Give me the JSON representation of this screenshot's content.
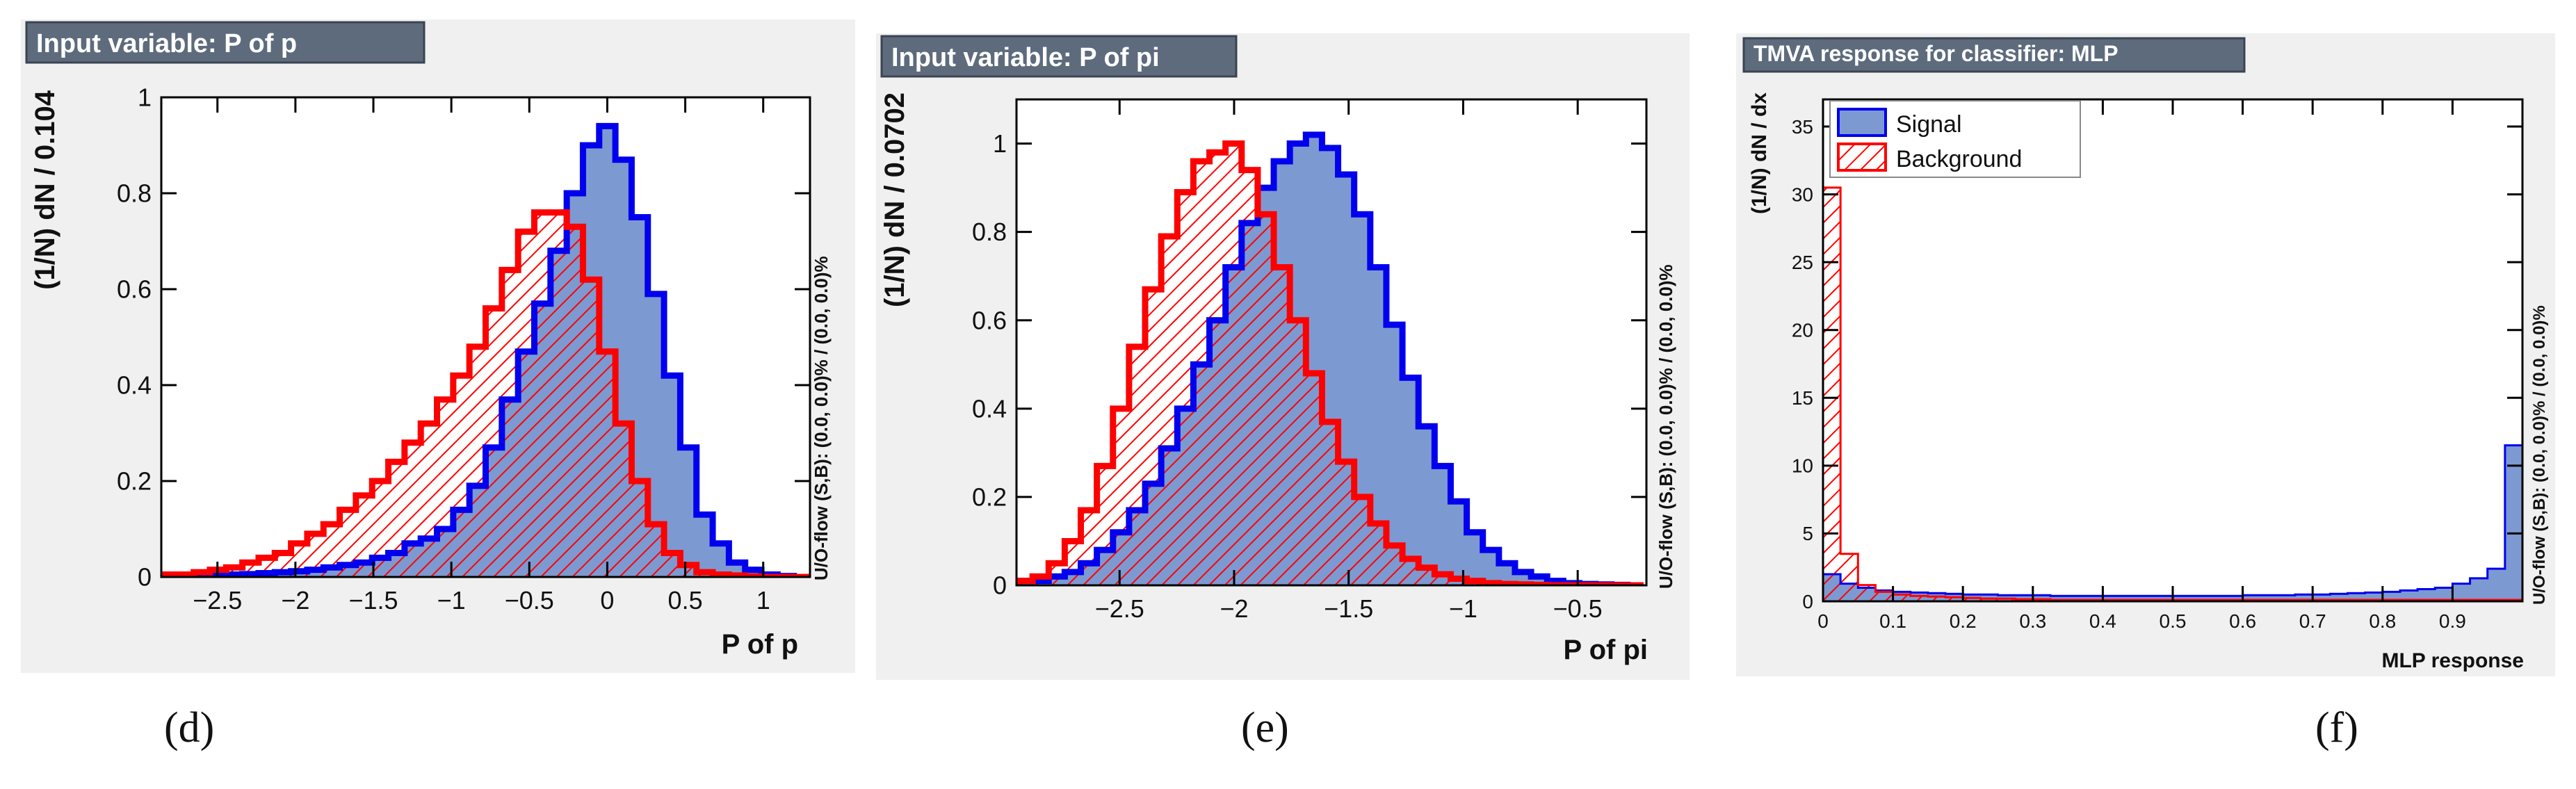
{
  "chart_data": [
    {
      "id": "d",
      "type": "histogram",
      "title": "Input variable: P of p",
      "xlabel": "P of p",
      "ylabel": "(1/N) dN / 0.104",
      "side_label": "U/O-flow (S,B): (0.0, 0.0)% / (0.0, 0.0)%",
      "xlim": [
        -2.86,
        1.3
      ],
      "ylim": [
        0,
        1.0
      ],
      "xticks": [
        {
          "v": -2.5,
          "label": "−2.5"
        },
        {
          "v": -2,
          "label": "−2"
        },
        {
          "v": -1.5,
          "label": "−1.5"
        },
        {
          "v": -1,
          "label": "−1"
        },
        {
          "v": -0.5,
          "label": "−0.5"
        },
        {
          "v": 0,
          "label": "0"
        },
        {
          "v": 0.5,
          "label": "0.5"
        },
        {
          "v": 1,
          "label": "1"
        }
      ],
      "yticks": [
        {
          "v": 0,
          "label": "0"
        },
        {
          "v": 0.2,
          "label": "0.2"
        },
        {
          "v": 0.4,
          "label": "0.4"
        },
        {
          "v": 0.6,
          "label": "0.6"
        },
        {
          "v": 0.8,
          "label": "0.8"
        },
        {
          "v": 1,
          "label": "1"
        }
      ],
      "bins": {
        "start": -2.86,
        "width": 0.104
      },
      "series": [
        {
          "name": "Signal",
          "values": [
            0.005,
            0.005,
            0.005,
            0.005,
            0.005,
            0.006,
            0.008,
            0.01,
            0.012,
            0.015,
            0.02,
            0.025,
            0.03,
            0.04,
            0.05,
            0.07,
            0.08,
            0.1,
            0.14,
            0.19,
            0.27,
            0.37,
            0.47,
            0.57,
            0.68,
            0.8,
            0.9,
            0.94,
            0.87,
            0.75,
            0.59,
            0.42,
            0.27,
            0.13,
            0.07,
            0.03,
            0.015,
            0.005,
            0.002,
            0.0
          ]
        },
        {
          "name": "Background",
          "values": [
            0.005,
            0.005,
            0.01,
            0.015,
            0.02,
            0.03,
            0.04,
            0.05,
            0.07,
            0.09,
            0.11,
            0.14,
            0.17,
            0.2,
            0.24,
            0.28,
            0.32,
            0.37,
            0.42,
            0.48,
            0.56,
            0.64,
            0.72,
            0.76,
            0.76,
            0.73,
            0.62,
            0.47,
            0.32,
            0.2,
            0.11,
            0.05,
            0.025,
            0.01,
            0.005,
            0.003,
            0.001,
            0.0,
            0.0,
            0.0
          ]
        }
      ]
    },
    {
      "id": "e",
      "type": "histogram",
      "title": "Input variable: P of pi",
      "xlabel": "P of pi",
      "ylabel": "(1/N) dN / 0.0702",
      "side_label": "U/O-flow (S,B): (0.0, 0.0)% / (0.0, 0.0)%",
      "xlim": [
        -2.95,
        -0.2
      ],
      "ylim": [
        0,
        1.1
      ],
      "xticks": [
        {
          "v": -2.5,
          "label": "−2.5"
        },
        {
          "v": -2,
          "label": "−2"
        },
        {
          "v": -1.5,
          "label": "−1.5"
        },
        {
          "v": -1,
          "label": "−1"
        },
        {
          "v": -0.5,
          "label": "−0.5"
        }
      ],
      "yticks": [
        {
          "v": 0,
          "label": "0"
        },
        {
          "v": 0.2,
          "label": "0.2"
        },
        {
          "v": 0.4,
          "label": "0.4"
        },
        {
          "v": 0.6,
          "label": "0.6"
        },
        {
          "v": 0.8,
          "label": "0.8"
        },
        {
          "v": 1,
          "label": "1"
        }
      ],
      "bins": {
        "start": -2.95,
        "width": 0.0702
      },
      "series": [
        {
          "name": "Signal",
          "values": [
            0.01,
            0.01,
            0.02,
            0.03,
            0.05,
            0.08,
            0.12,
            0.17,
            0.23,
            0.31,
            0.4,
            0.5,
            0.6,
            0.72,
            0.82,
            0.9,
            0.96,
            1.0,
            1.02,
            0.99,
            0.93,
            0.84,
            0.72,
            0.59,
            0.47,
            0.36,
            0.27,
            0.19,
            0.12,
            0.08,
            0.05,
            0.03,
            0.02,
            0.01,
            0.005,
            0.003,
            0.002,
            0.001,
            0.0
          ]
        },
        {
          "name": "Background",
          "values": [
            0.01,
            0.02,
            0.05,
            0.1,
            0.17,
            0.27,
            0.4,
            0.54,
            0.67,
            0.79,
            0.89,
            0.96,
            0.98,
            1.0,
            0.94,
            0.84,
            0.72,
            0.6,
            0.48,
            0.37,
            0.28,
            0.2,
            0.14,
            0.09,
            0.06,
            0.04,
            0.025,
            0.015,
            0.01,
            0.005,
            0.003,
            0.002,
            0.001,
            0.0,
            0.0,
            0.0,
            0.0,
            0.0,
            0.0
          ]
        }
      ]
    },
    {
      "id": "f",
      "type": "histogram",
      "title": "TMVA response for classifier: MLP",
      "xlabel": "MLP response",
      "ylabel": "(1/N) dN / dx",
      "side_label": "U/O-flow (S,B): (0.0, 0.0)% / (0.0, 0.0)%",
      "xlim": [
        0,
        1.0
      ],
      "ylim": [
        0,
        37
      ],
      "xticks": [
        {
          "v": 0,
          "label": "0"
        },
        {
          "v": 0.1,
          "label": "0.1"
        },
        {
          "v": 0.2,
          "label": "0.2"
        },
        {
          "v": 0.3,
          "label": "0.3"
        },
        {
          "v": 0.4,
          "label": "0.4"
        },
        {
          "v": 0.5,
          "label": "0.5"
        },
        {
          "v": 0.6,
          "label": "0.6"
        },
        {
          "v": 0.7,
          "label": "0.7"
        },
        {
          "v": 0.8,
          "label": "0.8"
        },
        {
          "v": 0.9,
          "label": "0.9"
        }
      ],
      "yticks": [
        {
          "v": 0,
          "label": "0"
        },
        {
          "v": 5,
          "label": "5"
        },
        {
          "v": 10,
          "label": "10"
        },
        {
          "v": 15,
          "label": "15"
        },
        {
          "v": 20,
          "label": "20"
        },
        {
          "v": 25,
          "label": "25"
        },
        {
          "v": 30,
          "label": "30"
        },
        {
          "v": 35,
          "label": "35"
        }
      ],
      "bins": {
        "start": 0,
        "width": 0.025
      },
      "series": [
        {
          "name": "Signal",
          "values": [
            2.0,
            1.3,
            1.0,
            0.8,
            0.7,
            0.65,
            0.6,
            0.55,
            0.5,
            0.5,
            0.45,
            0.45,
            0.45,
            0.4,
            0.4,
            0.4,
            0.4,
            0.4,
            0.4,
            0.4,
            0.4,
            0.4,
            0.4,
            0.4,
            0.45,
            0.45,
            0.45,
            0.5,
            0.5,
            0.55,
            0.6,
            0.65,
            0.7,
            0.8,
            0.9,
            1.0,
            1.3,
            1.7,
            2.4,
            11.5
          ]
        },
        {
          "name": "Background",
          "values": [
            30.5,
            3.5,
            1.2,
            0.7,
            0.5,
            0.4,
            0.35,
            0.3,
            0.25,
            0.2,
            0.2,
            0.15,
            0.15,
            0.1,
            0.1,
            0.1,
            0.1,
            0.1,
            0.1,
            0.1,
            0.1,
            0.1,
            0.1,
            0.1,
            0.1,
            0.1,
            0.1,
            0.1,
            0.1,
            0.1,
            0.1,
            0.1,
            0.1,
            0.1,
            0.1,
            0.1,
            0.1,
            0.1,
            0.1,
            0.1
          ]
        }
      ],
      "legend": [
        "Signal",
        "Background"
      ]
    }
  ],
  "sublabels": {
    "d": "(d)",
    "e": "(e)",
    "f": "(f)"
  },
  "colors": {
    "signal_fill": "#7d99d1",
    "signal_line": "#0000ee",
    "background_line": "#ff0000",
    "panel_bg": "#f0f0f0",
    "title_box": "#5d6b7d"
  }
}
